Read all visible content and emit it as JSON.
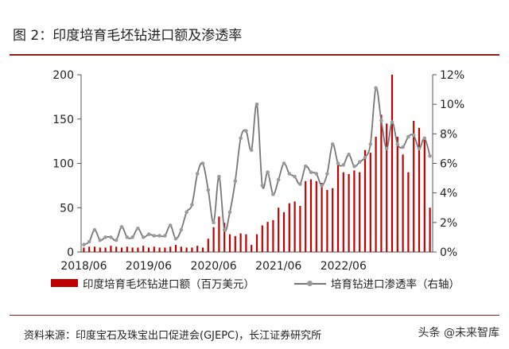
{
  "figure": {
    "title": "图 2：印度培育毛坯钻进口额及渗透率",
    "source": "资料来源：印度宝石及珠宝出口促进会(GJEPC)，长江证券研究所",
    "watermark": "头条 @未来智库"
  },
  "chart_data": {
    "type": "bar+line",
    "x_tick_labels": [
      "2018/06",
      "2019/06",
      "2020/06",
      "2021/06",
      "2022/06"
    ],
    "left_axis": {
      "ylim": [
        0,
        200
      ],
      "ticks": [
        "0",
        "50",
        "100",
        "150",
        "200"
      ]
    },
    "right_axis": {
      "ylim": [
        0,
        12
      ],
      "ticks": [
        "0%",
        "2%",
        "4%",
        "6%",
        "8%",
        "10%",
        "12%"
      ]
    },
    "legend_position": "bottom",
    "series": [
      {
        "name": "印度培育毛坯钻进口额（百万美元）",
        "kind": "bar",
        "axis": "left",
        "color": "#c00000",
        "values": [
          5,
          6,
          6,
          5,
          5,
          7,
          6,
          5,
          6,
          5,
          5,
          7,
          5,
          6,
          5,
          5,
          6,
          8,
          6,
          5,
          5,
          7,
          5,
          15,
          28,
          40,
          33,
          20,
          18,
          21,
          20,
          8,
          20,
          30,
          34,
          36,
          50,
          45,
          55,
          57,
          52,
          80,
          82,
          80,
          78,
          70,
          72,
          98,
          90,
          88,
          92,
          90,
          115,
          112,
          130,
          155,
          145,
          200,
          130,
          110,
          90,
          148,
          140,
          130,
          50
        ],
        "range_note": "2018/06–2022/06 monthly"
      },
      {
        "name": "培育钻进口渗透率（右轴）",
        "kind": "line",
        "axis": "right",
        "color": "#777777",
        "marker_color": "#9a9a9a",
        "values": [
          0.5,
          0.7,
          1.5,
          0.8,
          1.0,
          1.0,
          0.8,
          1.7,
          1.0,
          1.0,
          1.6,
          1.0,
          1.2,
          1.1,
          1.1,
          1.1,
          1.8,
          0.9,
          1.5,
          2.7,
          3.2,
          5.3,
          6.0,
          4.2,
          2.0,
          5.1,
          1.5,
          2.7,
          4.8,
          7.7,
          8.2,
          6.9,
          10.0,
          4.5,
          5.4,
          3.9,
          4.9,
          6.0,
          5.3,
          5.1,
          4.6,
          5.8,
          5.4,
          5.3,
          4.5,
          5.3,
          7.3,
          6.0,
          5.9,
          6.6,
          5.8,
          6.1,
          6.4,
          7.3,
          11.1,
          8.9,
          7.0,
          8.8,
          7.3,
          7.1,
          7.8,
          7.9,
          7.0,
          7.7,
          6.5
        ]
      }
    ]
  }
}
